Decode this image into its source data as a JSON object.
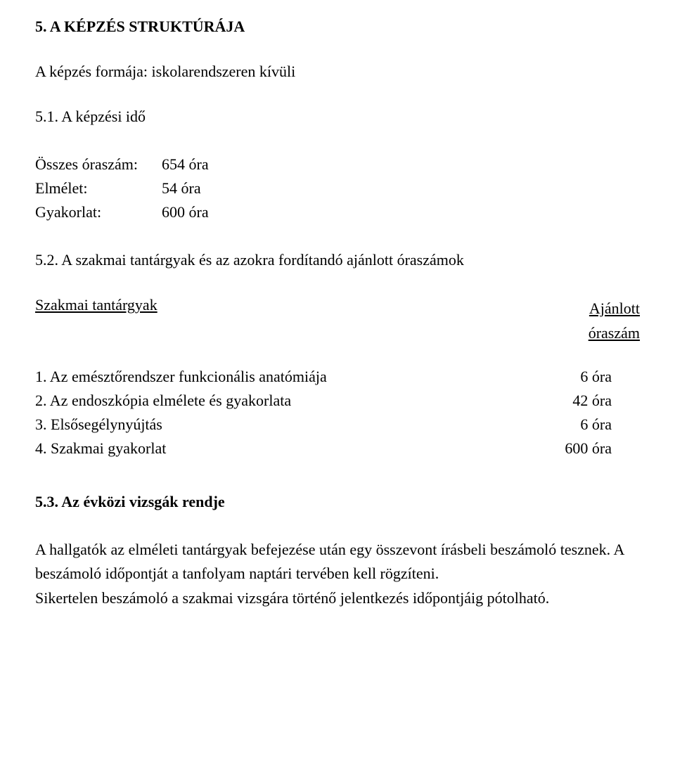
{
  "section_title": "5. A KÉPZÉS STRUKTÚRÁJA",
  "form_line": "A képzés formája: iskolarendszeren kívüli",
  "sub_51": "5.1. A képzési idő",
  "time_rows": [
    {
      "label": "Összes óraszám:",
      "value": "654 óra"
    },
    {
      "label": "Elmélet:",
      "value": "54 óra"
    },
    {
      "label": "Gyakorlat:",
      "value": "600 óra"
    }
  ],
  "sub_52": "5.2. A szakmai tantárgyak és az azokra fordítandó ajánlott óraszámok",
  "subj_head_left": "Szakmai tantárgyak",
  "subj_head_right_line1": "Ajánlott",
  "subj_head_right_line2": "óraszám",
  "subj_rows": [
    {
      "label": "1. Az emésztőrendszer funkcionális anatómiája",
      "value": "6 óra"
    },
    {
      "label": "2. Az endoszkópia elmélete és gyakorlata",
      "value": "42 óra"
    },
    {
      "label": "3. Elsősegélynyújtás",
      "value": "6 óra"
    },
    {
      "label": "4. Szakmai gyakorlat",
      "value": "600 óra"
    }
  ],
  "sub_53": "5.3. Az évközi vizsgák rendje",
  "body_p1": "A hallgatók az elméleti tantárgyak befejezése után egy összevont írásbeli beszámoló tesznek.",
  "body_p2": "A beszámoló időpontját a tanfolyam naptári tervében kell rögzíteni.",
  "body_p3": "Sikertelen beszámoló a szakmai vizsgára történő jelentkezés időpontjáig pótolható."
}
